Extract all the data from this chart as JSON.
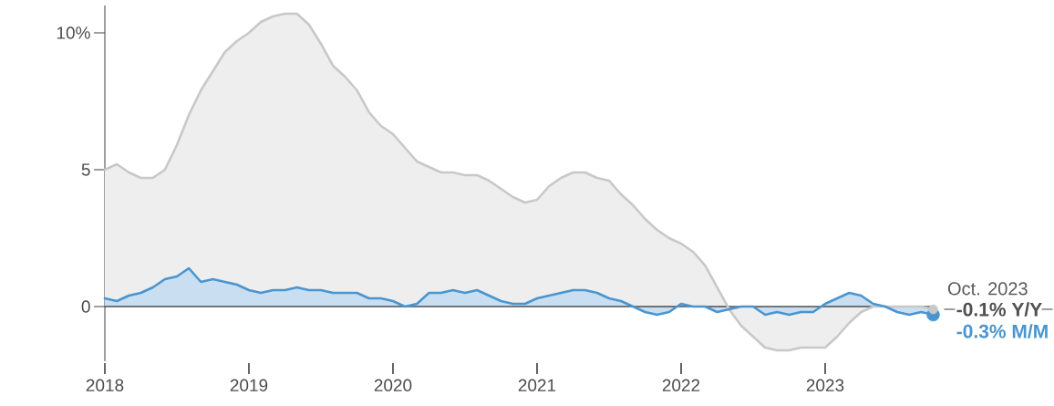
{
  "chart_data": {
    "type": "area",
    "x": [
      "2018-01",
      "2018-02",
      "2018-03",
      "2018-04",
      "2018-05",
      "2018-06",
      "2018-07",
      "2018-08",
      "2018-09",
      "2018-10",
      "2018-11",
      "2018-12",
      "2019-01",
      "2019-02",
      "2019-03",
      "2019-04",
      "2019-05",
      "2019-06",
      "2019-07",
      "2019-08",
      "2019-09",
      "2019-10",
      "2019-11",
      "2019-12",
      "2020-01",
      "2020-02",
      "2020-03",
      "2020-04",
      "2020-05",
      "2020-06",
      "2020-07",
      "2020-08",
      "2020-09",
      "2020-10",
      "2020-11",
      "2020-12",
      "2021-01",
      "2021-02",
      "2021-03",
      "2021-04",
      "2021-05",
      "2021-06",
      "2021-07",
      "2021-08",
      "2021-09",
      "2021-10",
      "2021-11",
      "2021-12",
      "2022-01",
      "2022-02",
      "2022-03",
      "2022-04",
      "2022-05",
      "2022-06",
      "2022-07",
      "2022-08",
      "2022-09",
      "2022-10",
      "2022-11",
      "2022-12",
      "2023-01",
      "2023-02",
      "2023-03",
      "2023-04",
      "2023-05",
      "2023-06",
      "2023-07",
      "2023-08",
      "2023-09",
      "2023-10"
    ],
    "series": [
      {
        "name": "-0.1% Y/Y",
        "color": "#c8c8c8",
        "values": [
          5.0,
          5.2,
          4.9,
          4.7,
          4.7,
          5.0,
          5.9,
          7.0,
          7.9,
          8.6,
          9.3,
          9.7,
          10.0,
          10.4,
          10.6,
          10.7,
          10.7,
          10.3,
          9.6,
          8.8,
          8.4,
          7.9,
          7.1,
          6.6,
          6.3,
          5.8,
          5.3,
          5.1,
          4.9,
          4.9,
          4.8,
          4.8,
          4.6,
          4.3,
          4.0,
          3.8,
          3.9,
          4.4,
          4.7,
          4.9,
          4.9,
          4.7,
          4.6,
          4.1,
          3.7,
          3.2,
          2.8,
          2.5,
          2.3,
          2.0,
          1.5,
          0.7,
          -0.1,
          -0.7,
          -1.1,
          -1.5,
          -1.6,
          -1.6,
          -1.5,
          -1.5,
          -1.5,
          -1.1,
          -0.6,
          -0.2,
          0.0,
          0.0,
          0.0,
          0.0,
          0.0,
          -0.1
        ]
      },
      {
        "name": "-0.3% M/M",
        "color": "#4a95d0",
        "values": [
          0.3,
          0.2,
          0.4,
          0.5,
          0.7,
          1.0,
          1.1,
          1.4,
          0.9,
          1.0,
          0.9,
          0.8,
          0.6,
          0.5,
          0.6,
          0.6,
          0.7,
          0.6,
          0.6,
          0.5,
          0.5,
          0.5,
          0.3,
          0.3,
          0.2,
          0.0,
          0.1,
          0.5,
          0.5,
          0.6,
          0.5,
          0.6,
          0.4,
          0.2,
          0.1,
          0.1,
          0.3,
          0.4,
          0.5,
          0.6,
          0.6,
          0.5,
          0.3,
          0.2,
          0.0,
          -0.2,
          -0.3,
          -0.2,
          0.1,
          0.0,
          0.0,
          -0.2,
          -0.1,
          0.0,
          0.0,
          -0.3,
          -0.2,
          -0.3,
          -0.2,
          -0.2,
          0.1,
          0.3,
          0.5,
          0.4,
          0.1,
          0.0,
          -0.2,
          -0.3,
          -0.2,
          -0.3
        ]
      }
    ],
    "xlim": [
      "2018-01",
      "2023-10"
    ],
    "xticks": [
      "2018",
      "2019",
      "2020",
      "2021",
      "2022",
      "2023"
    ],
    "ylim": [
      -2,
      11
    ],
    "ref_lines": [
      {
        "axis": "y",
        "value": 0,
        "color": "#000000"
      }
    ],
    "yticks": [
      0,
      5,
      {
        "value": 10,
        "label": "10%"
      }
    ],
    "annotations": [
      {
        "text": "Oct. 2023",
        "x": "2023-10",
        "y": -0.1
      }
    ]
  }
}
